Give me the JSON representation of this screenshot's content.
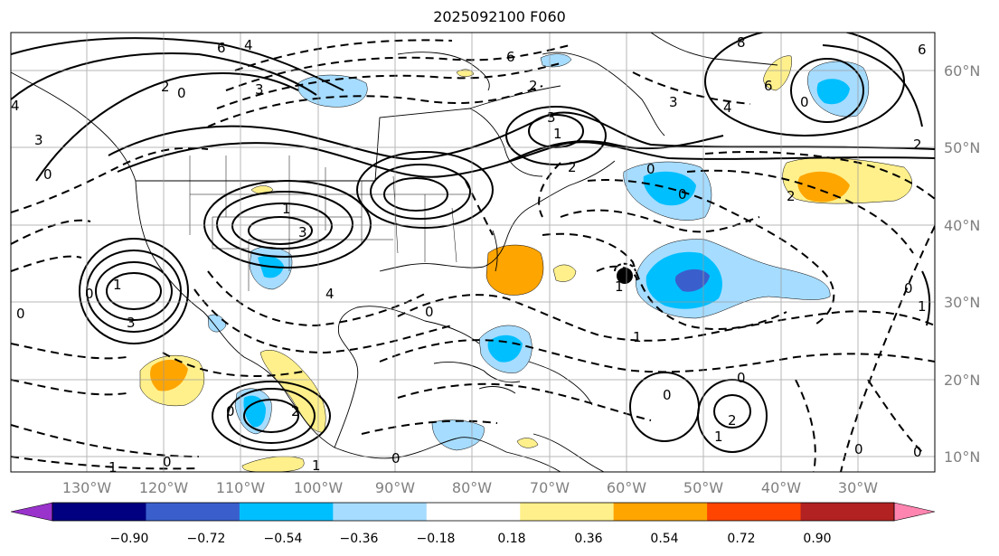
{
  "title": "2025092100 F060",
  "lon_ticks": [
    "130°W",
    "120°W",
    "110°W",
    "100°W",
    "90°W",
    "80°W",
    "70°W",
    "60°W",
    "50°W",
    "40°W",
    "30°W"
  ],
  "lat_ticks": [
    "60°N",
    "50°N",
    "40°N",
    "30°N",
    "20°N",
    "10°N"
  ],
  "colorbar": {
    "colors": [
      "#9933cc",
      "#000080",
      "#3a5fcd",
      "#00bfff",
      "#a6dcff",
      "#ffffff",
      "#fff08c",
      "#ffa500",
      "#ff4500",
      "#b22222",
      "#ff85b0"
    ],
    "labels": [
      "−0.90",
      "−0.72",
      "−0.54",
      "−0.36",
      "−0.18",
      "0.18",
      "0.36",
      "0.54",
      "0.72",
      "0.90"
    ]
  },
  "contour_labels": [
    "6",
    "4",
    "2",
    "0",
    "3",
    "1",
    "8",
    "5"
  ]
}
